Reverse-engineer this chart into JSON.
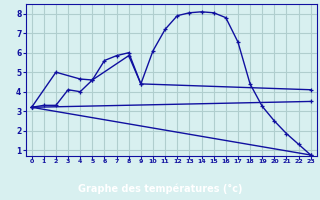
{
  "bg_color": "#d8f0f0",
  "grid_color": "#b0cece",
  "line_color": "#1010a0",
  "xlabel": "Graphe des températures (°c)",
  "xlabel_bg": "#1010a0",
  "xlabel_fg": "white",
  "xlim": [
    -0.5,
    23.5
  ],
  "ylim": [
    0.7,
    8.5
  ],
  "xticks": [
    0,
    1,
    2,
    3,
    4,
    5,
    6,
    7,
    8,
    9,
    10,
    11,
    12,
    13,
    14,
    15,
    16,
    17,
    18,
    19,
    20,
    21,
    22,
    23
  ],
  "yticks": [
    1,
    2,
    3,
    4,
    5,
    6,
    7,
    8
  ],
  "curve1_x": [
    0,
    1,
    2,
    3,
    4,
    5,
    6,
    7,
    8,
    9,
    10,
    11,
    12,
    13,
    14,
    15,
    16,
    17,
    18,
    19,
    20,
    21,
    22,
    23
  ],
  "curve1_y": [
    3.2,
    3.3,
    3.3,
    4.1,
    4.0,
    4.6,
    5.6,
    5.85,
    6.0,
    4.4,
    6.1,
    7.2,
    7.9,
    8.05,
    8.1,
    8.05,
    7.8,
    6.55,
    4.4,
    3.25,
    2.5,
    1.85,
    1.3,
    0.75
  ],
  "curve2_x": [
    0,
    2,
    4,
    5,
    8,
    9,
    23
  ],
  "curve2_y": [
    3.2,
    5.0,
    4.65,
    4.6,
    5.85,
    4.4,
    4.1
  ],
  "curve3_x": [
    0,
    23
  ],
  "curve3_y": [
    3.2,
    3.5
  ],
  "curve4_x": [
    0,
    23
  ],
  "curve4_y": [
    3.2,
    0.75
  ]
}
